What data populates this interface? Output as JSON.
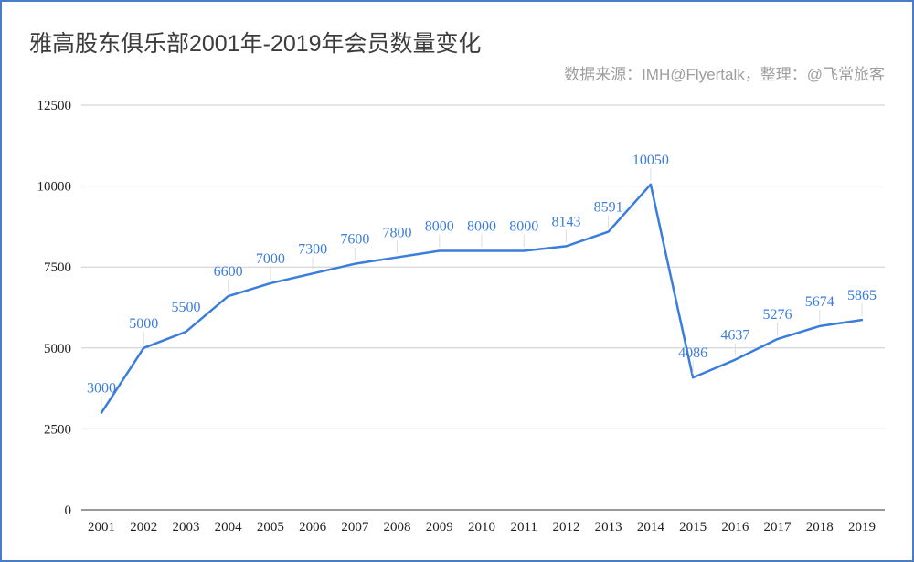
{
  "chart_data": {
    "type": "line",
    "title": "雅高股东俱乐部2001年-2019年会员数量变化",
    "subtitle": "数据来源：IMH@Flyertalk，整理：@飞常旅客",
    "xlabel": "",
    "ylabel": "",
    "categories": [
      "2001",
      "2002",
      "2003",
      "2004",
      "2005",
      "2006",
      "2007",
      "2008",
      "2009",
      "2010",
      "2011",
      "2012",
      "2013",
      "2014",
      "2015",
      "2016",
      "2017",
      "2018",
      "2019"
    ],
    "series": [
      {
        "values": [
          3000,
          5000,
          5500,
          6600,
          7000,
          7300,
          7600,
          7800,
          8000,
          8000,
          8000,
          8143,
          8591,
          10050,
          4086,
          4637,
          5276,
          5674,
          5865
        ],
        "color": "#3b7ddd"
      }
    ],
    "ylim": [
      0,
      12500
    ],
    "yticks": [
      0,
      2500,
      5000,
      7500,
      10000,
      12500
    ],
    "grid": true,
    "legend": "none"
  }
}
